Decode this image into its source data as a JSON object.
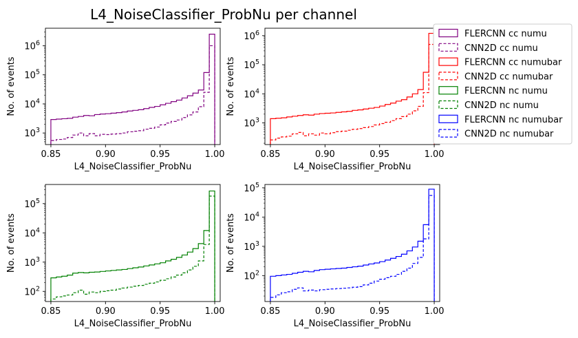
{
  "figure": {
    "title": "L4_NoiseClassifier_ProbNu per channel"
  },
  "legend": {
    "placement": "right, outside plots",
    "entries": [
      {
        "label": "FLERCNN cc numu",
        "color": "#800080",
        "style": "solid"
      },
      {
        "label": "CNN2D cc numu",
        "color": "#800080",
        "style": "dashed"
      },
      {
        "label": "FLERCNN cc numubar",
        "color": "#ff0000",
        "style": "solid"
      },
      {
        "label": "CNN2D cc numubar",
        "color": "#ff0000",
        "style": "dashed"
      },
      {
        "label": "FLERCNN nc numu",
        "color": "#008000",
        "style": "solid"
      },
      {
        "label": "CNN2D nc numu",
        "color": "#008000",
        "style": "dashed"
      },
      {
        "label": "FLERCNN nc numubar",
        "color": "#0000ff",
        "style": "solid"
      },
      {
        "label": "CNN2D nc numubar",
        "color": "#0000ff",
        "style": "dashed"
      }
    ]
  },
  "chart_data": [
    {
      "type": "histogram",
      "xlabel": "L4_NoiseClassifier_ProbNu",
      "ylabel": "No. of events",
      "yscale": "log",
      "xlim": [
        0.845,
        1.005
      ],
      "ylim": [
        400,
        4000000
      ],
      "xticks": [
        "0.85",
        "0.90",
        "0.95",
        "1.00"
      ],
      "yticks": [
        {
          "exp": 3,
          "value": 1000
        },
        {
          "exp": 4,
          "value": 10000
        },
        {
          "exp": 5,
          "value": 100000
        },
        {
          "exp": 6,
          "value": 1000000
        }
      ],
      "bin_edges": [
        0.85,
        0.855,
        0.86,
        0.865,
        0.87,
        0.875,
        0.88,
        0.885,
        0.89,
        0.895,
        0.9,
        0.905,
        0.91,
        0.915,
        0.92,
        0.925,
        0.93,
        0.935,
        0.94,
        0.945,
        0.95,
        0.955,
        0.96,
        0.965,
        0.97,
        0.975,
        0.98,
        0.985,
        0.99,
        0.995,
        1.0
      ],
      "series": [
        {
          "name": "FLERCNN cc numu",
          "color": "#800080",
          "style": "solid",
          "values": [
            2900,
            3000,
            3100,
            3200,
            3500,
            3700,
            4000,
            3900,
            4300,
            4500,
            4600,
            4800,
            5000,
            5300,
            5700,
            6000,
            6300,
            6900,
            7600,
            8200,
            9300,
            10500,
            12000,
            13500,
            16000,
            19000,
            23500,
            30000,
            120000,
            2500000
          ]
        },
        {
          "name": "CNN2D cc numu",
          "color": "#800080",
          "style": "dashed",
          "values": [
            550,
            600,
            620,
            700,
            850,
            1000,
            800,
            950,
            800,
            900,
            880,
            920,
            950,
            1000,
            1100,
            1150,
            1200,
            1350,
            1450,
            1600,
            1900,
            2200,
            2500,
            2800,
            3400,
            4200,
            5300,
            8000,
            25000,
            1000000
          ]
        }
      ]
    },
    {
      "type": "histogram",
      "xlabel": "L4_NoiseClassifier_ProbNu",
      "ylabel": "No. of events",
      "yscale": "log",
      "xlim": [
        0.845,
        1.005
      ],
      "ylim": [
        180,
        1800000
      ],
      "xticks": [
        "0.85",
        "0.90",
        "0.95",
        "1.00"
      ],
      "yticks": [
        {
          "exp": 3,
          "value": 1000
        },
        {
          "exp": 4,
          "value": 10000
        },
        {
          "exp": 5,
          "value": 100000
        },
        {
          "exp": 6,
          "value": 1000000
        }
      ],
      "bin_edges": [
        0.85,
        0.855,
        0.86,
        0.865,
        0.87,
        0.875,
        0.88,
        0.885,
        0.89,
        0.895,
        0.9,
        0.905,
        0.91,
        0.915,
        0.92,
        0.925,
        0.93,
        0.935,
        0.94,
        0.945,
        0.95,
        0.955,
        0.96,
        0.965,
        0.97,
        0.975,
        0.98,
        0.985,
        0.99,
        0.995,
        1.0
      ],
      "series": [
        {
          "name": "FLERCNN cc numubar",
          "color": "#ff0000",
          "style": "solid",
          "values": [
            1400,
            1450,
            1500,
            1600,
            1700,
            1800,
            1900,
            1850,
            2000,
            2100,
            2150,
            2200,
            2300,
            2400,
            2500,
            2700,
            2800,
            3000,
            3200,
            3400,
            3800,
            4300,
            4800,
            5600,
            6300,
            7800,
            10000,
            14000,
            55000,
            1200000
          ]
        },
        {
          "name": "CNN2D cc numubar",
          "color": "#ff0000",
          "style": "dashed",
          "values": [
            260,
            300,
            330,
            350,
            420,
            470,
            360,
            420,
            380,
            450,
            420,
            460,
            500,
            520,
            560,
            600,
            640,
            690,
            750,
            850,
            950,
            1050,
            1200,
            1400,
            1650,
            2000,
            2600,
            3700,
            11000,
            500000
          ]
        }
      ]
    },
    {
      "type": "histogram",
      "xlabel": "L4_NoiseClassifier_ProbNu",
      "ylabel": "No. of events",
      "yscale": "log",
      "xlim": [
        0.845,
        1.005
      ],
      "ylim": [
        45,
        450000
      ],
      "xticks": [
        "0.85",
        "0.90",
        "0.95",
        "1.00"
      ],
      "yticks": [
        {
          "exp": 2,
          "value": 100
        },
        {
          "exp": 3,
          "value": 1000
        },
        {
          "exp": 4,
          "value": 10000
        },
        {
          "exp": 5,
          "value": 100000
        }
      ],
      "bin_edges": [
        0.85,
        0.855,
        0.86,
        0.865,
        0.87,
        0.875,
        0.88,
        0.885,
        0.89,
        0.895,
        0.9,
        0.905,
        0.91,
        0.915,
        0.92,
        0.925,
        0.93,
        0.935,
        0.94,
        0.945,
        0.95,
        0.955,
        0.96,
        0.965,
        0.97,
        0.975,
        0.98,
        0.985,
        0.99,
        0.995,
        1.0
      ],
      "series": [
        {
          "name": "FLERCNN nc numu",
          "color": "#008000",
          "style": "solid",
          "values": [
            290,
            310,
            330,
            360,
            420,
            440,
            430,
            450,
            460,
            480,
            500,
            520,
            540,
            560,
            600,
            640,
            680,
            740,
            800,
            870,
            950,
            1100,
            1250,
            1450,
            1750,
            2200,
            2900,
            4300,
            12000,
            270000
          ]
        },
        {
          "name": "CNN2D nc numu",
          "color": "#008000",
          "style": "dashed",
          "values": [
            55,
            65,
            70,
            75,
            90,
            110,
            80,
            95,
            90,
            100,
            105,
            110,
            120,
            130,
            140,
            150,
            160,
            175,
            190,
            210,
            240,
            270,
            310,
            360,
            430,
            540,
            720,
            1100,
            4000,
            180000
          ]
        }
      ]
    },
    {
      "type": "histogram",
      "xlabel": "L4_NoiseClassifier_ProbNu",
      "ylabel": "No. of events",
      "yscale": "log",
      "xlim": [
        0.845,
        1.005
      ],
      "ylim": [
        13,
        130000
      ],
      "xticks": [
        "0.85",
        "0.90",
        "0.95",
        "1.00"
      ],
      "yticks": [
        {
          "exp": 2,
          "value": 100
        },
        {
          "exp": 3,
          "value": 1000
        },
        {
          "exp": 4,
          "value": 10000
        },
        {
          "exp": 5,
          "value": 100000
        }
      ],
      "bin_edges": [
        0.85,
        0.855,
        0.86,
        0.865,
        0.87,
        0.875,
        0.88,
        0.885,
        0.89,
        0.895,
        0.9,
        0.905,
        0.91,
        0.915,
        0.92,
        0.925,
        0.93,
        0.935,
        0.94,
        0.945,
        0.95,
        0.955,
        0.96,
        0.965,
        0.97,
        0.975,
        0.98,
        0.985,
        0.99,
        0.995,
        1.0
      ],
      "series": [
        {
          "name": "FLERCNN nc numubar",
          "color": "#0000ff",
          "style": "solid",
          "values": [
            95,
            100,
            105,
            110,
            120,
            130,
            140,
            135,
            150,
            160,
            165,
            170,
            175,
            180,
            190,
            200,
            210,
            230,
            250,
            270,
            300,
            340,
            390,
            450,
            540,
            700,
            950,
            1500,
            5500,
            90000
          ]
        },
        {
          "name": "CNN2D nc numubar",
          "color": "#0000ff",
          "style": "dashed",
          "values": [
            18,
            22,
            26,
            28,
            34,
            38,
            30,
            32,
            30,
            33,
            34,
            35,
            36,
            37,
            38,
            40,
            42,
            48,
            55,
            65,
            75,
            85,
            95,
            110,
            140,
            180,
            260,
            420,
            1800,
            55000
          ]
        }
      ]
    }
  ]
}
